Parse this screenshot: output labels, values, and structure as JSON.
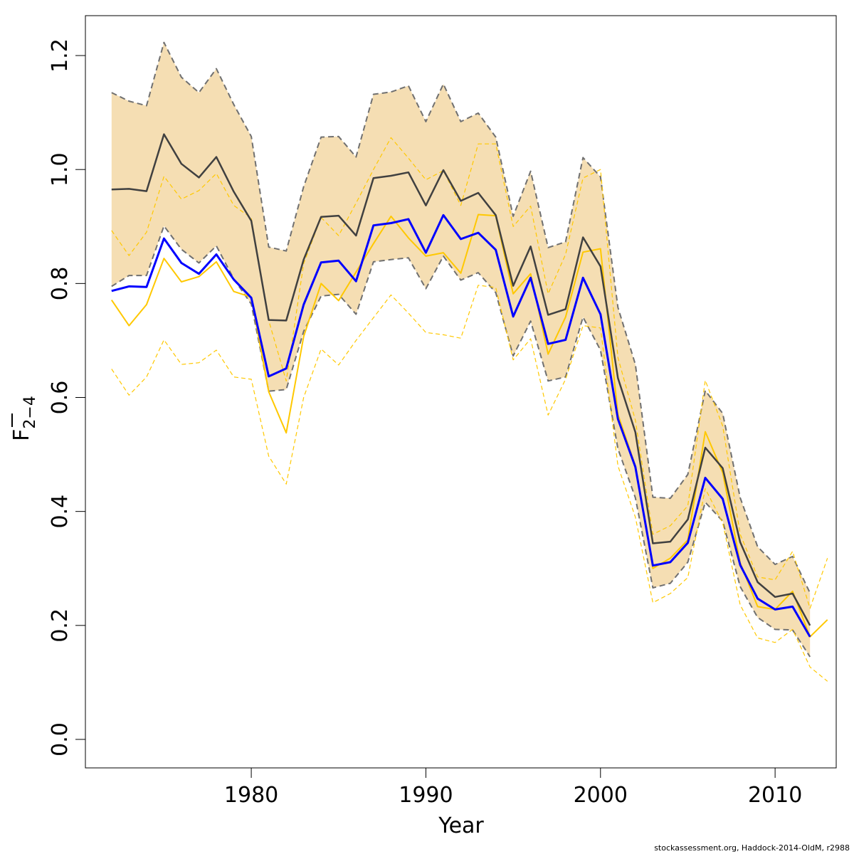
{
  "chart_data": {
    "type": "line",
    "xlabel": "Year",
    "ylabel_base": "F",
    "ylabel_sub": "2−4",
    "xlim": [
      1970.5,
      2013.5
    ],
    "ylim": [
      -0.05,
      1.27
    ],
    "xticks": [
      1980,
      1990,
      2000,
      2010
    ],
    "yticks": [
      0.0,
      0.2,
      0.4,
      0.6,
      0.8,
      1.0,
      1.2
    ],
    "ytick_labels": [
      "0.0",
      "0.2",
      "0.4",
      "0.6",
      "0.8",
      "1.0",
      "1.2"
    ],
    "colors": {
      "band_fill": "#f5deb3",
      "band_edge": "#707070",
      "estimate": "#404040",
      "blue": "#0000ff",
      "gold": "#ffc800"
    },
    "series": [
      {
        "id": "estimate",
        "x": [
          1972,
          1973,
          1974,
          1975,
          1976,
          1977,
          1978,
          1979,
          1980,
          1981,
          1982,
          1983,
          1984,
          1985,
          1986,
          1987,
          1988,
          1989,
          1990,
          1991,
          1992,
          1993,
          1994,
          1995,
          1996,
          1997,
          1998,
          1999,
          2000,
          2001,
          2002,
          2003,
          2004,
          2005,
          2006,
          2007,
          2008,
          2009,
          2010,
          2011,
          2012
        ],
        "values": [
          0.965,
          0.966,
          0.962,
          1.062,
          1.01,
          0.986,
          1.022,
          0.961,
          0.91,
          0.736,
          0.735,
          0.842,
          0.917,
          0.919,
          0.884,
          0.985,
          0.989,
          0.995,
          0.937,
          0.999,
          0.945,
          0.959,
          0.92,
          0.796,
          0.865,
          0.745,
          0.755,
          0.881,
          0.83,
          0.634,
          0.539,
          0.344,
          0.347,
          0.386,
          0.512,
          0.476,
          0.346,
          0.276,
          0.25,
          0.256,
          0.2
        ]
      },
      {
        "id": "upper",
        "x": [
          1972,
          1973,
          1974,
          1975,
          1976,
          1977,
          1978,
          1979,
          1980,
          1981,
          1982,
          1983,
          1984,
          1985,
          1986,
          1987,
          1988,
          1989,
          1990,
          1991,
          1992,
          1993,
          1994,
          1995,
          1996,
          1997,
          1998,
          1999,
          2000,
          2001,
          2002,
          2003,
          2004,
          2005,
          2006,
          2007,
          2008,
          2009,
          2010,
          2011,
          2012
        ],
        "values": [
          1.135,
          1.12,
          1.112,
          1.223,
          1.162,
          1.135,
          1.177,
          1.114,
          1.058,
          0.864,
          0.857,
          0.97,
          1.057,
          1.058,
          1.022,
          1.132,
          1.136,
          1.147,
          1.084,
          1.15,
          1.084,
          1.099,
          1.057,
          0.918,
          0.997,
          0.863,
          0.873,
          1.021,
          0.987,
          0.758,
          0.658,
          0.425,
          0.423,
          0.465,
          0.612,
          0.572,
          0.424,
          0.338,
          0.307,
          0.321,
          0.257
        ]
      },
      {
        "id": "lower",
        "x": [
          1972,
          1973,
          1974,
          1975,
          1976,
          1977,
          1978,
          1979,
          1980,
          1981,
          1982,
          1983,
          1984,
          1985,
          1986,
          1987,
          1988,
          1989,
          1990,
          1991,
          1992,
          1993,
          1994,
          1995,
          1996,
          1997,
          1998,
          1999,
          2000,
          2001,
          2002,
          2003,
          2004,
          2005,
          2006,
          2007,
          2008,
          2009,
          2010,
          2011,
          2012
        ],
        "values": [
          0.795,
          0.814,
          0.814,
          0.901,
          0.86,
          0.836,
          0.866,
          0.808,
          0.764,
          0.611,
          0.614,
          0.716,
          0.778,
          0.781,
          0.746,
          0.838,
          0.842,
          0.845,
          0.791,
          0.848,
          0.806,
          0.819,
          0.784,
          0.673,
          0.734,
          0.629,
          0.636,
          0.741,
          0.683,
          0.51,
          0.424,
          0.266,
          0.274,
          0.311,
          0.416,
          0.383,
          0.268,
          0.214,
          0.193,
          0.192,
          0.145
        ]
      },
      {
        "id": "blue",
        "x": [
          1972,
          1973,
          1974,
          1975,
          1976,
          1977,
          1978,
          1979,
          1980,
          1981,
          1982,
          1983,
          1984,
          1985,
          1986,
          1987,
          1988,
          1989,
          1990,
          1991,
          1992,
          1993,
          1994,
          1995,
          1996,
          1997,
          1998,
          1999,
          2000,
          2001,
          2002,
          2003,
          2004,
          2005,
          2006,
          2007,
          2008,
          2009,
          2010,
          2011,
          2012
        ],
        "values": [
          0.787,
          0.795,
          0.794,
          0.879,
          0.836,
          0.817,
          0.851,
          0.807,
          0.775,
          0.637,
          0.651,
          0.763,
          0.837,
          0.84,
          0.804,
          0.902,
          0.906,
          0.913,
          0.854,
          0.92,
          0.878,
          0.889,
          0.859,
          0.742,
          0.81,
          0.694,
          0.701,
          0.81,
          0.746,
          0.562,
          0.478,
          0.305,
          0.311,
          0.345,
          0.459,
          0.422,
          0.306,
          0.247,
          0.228,
          0.233,
          0.18
        ]
      },
      {
        "id": "gold",
        "x": [
          1972,
          1973,
          1974,
          1975,
          1976,
          1977,
          1978,
          1979,
          1980,
          1981,
          1982,
          1983,
          1984,
          1985,
          1986,
          1987,
          1988,
          1989,
          1990,
          1991,
          1992,
          1993,
          1994,
          1995,
          1996,
          1997,
          1998,
          1999,
          2000,
          2001,
          2002,
          2003,
          2004,
          2005,
          2006,
          2007,
          2008,
          2009,
          2010,
          2011,
          2012,
          2013
        ],
        "values": [
          0.771,
          0.726,
          0.763,
          0.844,
          0.803,
          0.812,
          0.838,
          0.786,
          0.776,
          0.61,
          0.538,
          0.707,
          0.8,
          0.77,
          0.82,
          0.87,
          0.918,
          0.88,
          0.848,
          0.854,
          0.818,
          0.921,
          0.919,
          0.782,
          0.817,
          0.676,
          0.741,
          0.855,
          0.861,
          0.57,
          0.48,
          0.3,
          0.318,
          0.35,
          0.54,
          0.468,
          0.31,
          0.233,
          0.228,
          0.26,
          0.18,
          0.21
        ]
      },
      {
        "id": "gold_upper",
        "x": [
          1972,
          1973,
          1974,
          1975,
          1976,
          1977,
          1978,
          1979,
          1980,
          1981,
          1982,
          1983,
          1984,
          1985,
          1986,
          1987,
          1988,
          1989,
          1990,
          1991,
          1992,
          1993,
          1994,
          1995,
          1996,
          1997,
          1998,
          1999,
          2000,
          2001,
          2002,
          2003,
          2004,
          2005,
          2006,
          2007,
          2008,
          2009,
          2010,
          2011,
          2012,
          2013
        ],
        "values": [
          0.893,
          0.849,
          0.89,
          0.988,
          0.948,
          0.963,
          0.993,
          0.937,
          0.915,
          0.735,
          0.629,
          0.835,
          0.916,
          0.884,
          0.941,
          1.0,
          1.056,
          1.02,
          0.982,
          0.998,
          0.937,
          1.045,
          1.045,
          0.9,
          0.936,
          0.782,
          0.851,
          0.985,
          1.0,
          0.67,
          0.56,
          0.36,
          0.375,
          0.41,
          0.63,
          0.55,
          0.36,
          0.285,
          0.28,
          0.33,
          0.23,
          0.318
        ]
      },
      {
        "id": "gold_lower",
        "x": [
          1972,
          1973,
          1974,
          1975,
          1976,
          1977,
          1978,
          1979,
          1980,
          1981,
          1982,
          1983,
          1984,
          1985,
          1986,
          1987,
          1988,
          1989,
          1990,
          1991,
          1992,
          1993,
          1994,
          1995,
          1996,
          1997,
          1998,
          1999,
          2000,
          2001,
          2002,
          2003,
          2004,
          2005,
          2006,
          2007,
          2008,
          2009,
          2010,
          2011,
          2012,
          2013
        ],
        "values": [
          0.65,
          0.604,
          0.636,
          0.701,
          0.658,
          0.661,
          0.683,
          0.636,
          0.632,
          0.497,
          0.448,
          0.6,
          0.685,
          0.657,
          0.7,
          0.74,
          0.78,
          0.748,
          0.714,
          0.71,
          0.704,
          0.797,
          0.793,
          0.666,
          0.703,
          0.569,
          0.632,
          0.726,
          0.722,
          0.48,
          0.39,
          0.24,
          0.256,
          0.284,
          0.44,
          0.38,
          0.236,
          0.178,
          0.17,
          0.193,
          0.127,
          0.102
        ]
      }
    ]
  },
  "footer": {
    "text": "stockassessment.org, Haddock-2014-OldM, r2988"
  }
}
